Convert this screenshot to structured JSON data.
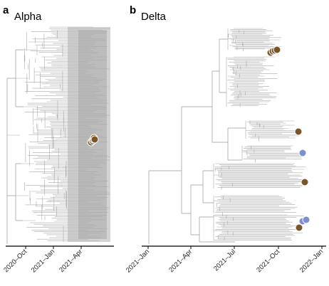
{
  "colors": {
    "branch": "#a9a9a9",
    "marker_brown": "#7a5528",
    "marker_blue": "#7b8fd1",
    "axis": "#000000"
  },
  "panels": [
    {
      "letter": "a",
      "title": "Alpha",
      "x_ticks": [
        "2020–Oct",
        "2021–Jan",
        "2021–Apr"
      ],
      "markers": [
        {
          "color": "brown",
          "count": 5
        }
      ]
    },
    {
      "letter": "b",
      "title": "Delta",
      "x_ticks": [
        "2021–Jan",
        "2021–Apr",
        "2021–Jul",
        "2021–Oct",
        "2022–Jan"
      ],
      "markers": [
        {
          "color": "brown",
          "count": 4
        },
        {
          "color": "brown",
          "count": 1
        },
        {
          "color": "blue",
          "count": 1
        },
        {
          "color": "brown",
          "count": 1
        },
        {
          "color": "blue",
          "count": 2
        },
        {
          "color": "brown",
          "count": 1
        }
      ]
    }
  ]
}
